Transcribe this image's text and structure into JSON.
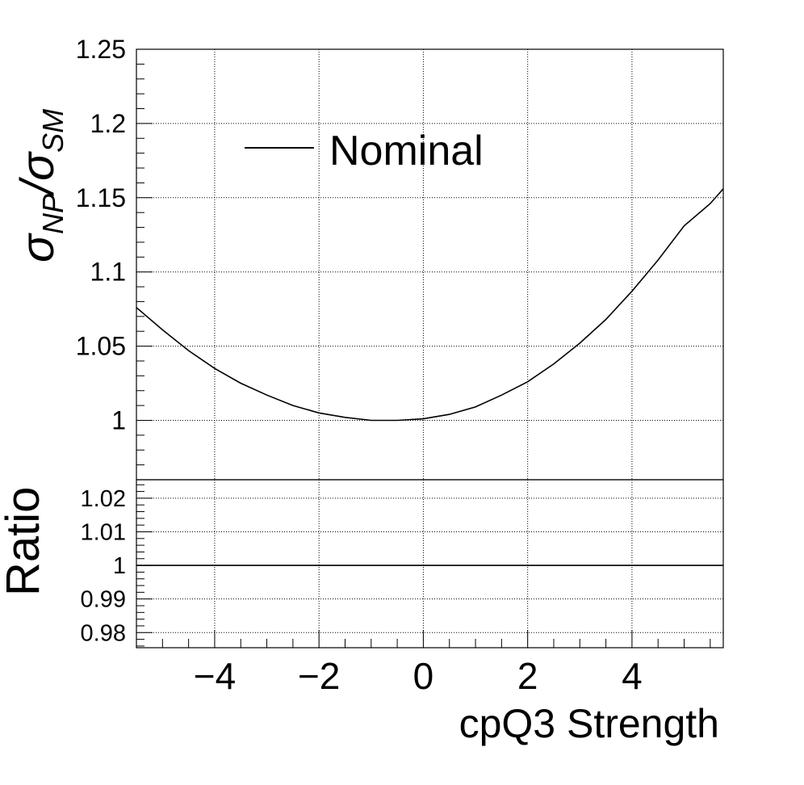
{
  "chart_data": [
    {
      "panel": "main",
      "type": "line",
      "ylabel_main": "σ",
      "ylabel_num_sub": "NP",
      "ylabel_den_sub": "SM",
      "xlim": [
        -5.5,
        5.75
      ],
      "ylim": [
        0.96,
        1.25
      ],
      "yticks": [
        1,
        1.05,
        1.1,
        1.15,
        1.2,
        1.25
      ],
      "ytick_labels": [
        "1",
        "1.05",
        "1.1",
        "1.15",
        "1.2",
        "1.25"
      ],
      "grid": true,
      "legend": {
        "placement": "top-left",
        "entries": [
          "Nominal"
        ]
      },
      "series": [
        {
          "name": "Nominal",
          "x": [
            -5.5,
            -5,
            -4.5,
            -4,
            -3.5,
            -3,
            -2.5,
            -2,
            -1.5,
            -1,
            -0.5,
            0,
            0.5,
            1,
            1.5,
            2,
            2.5,
            3,
            3.5,
            4,
            4.5,
            5,
            5.5,
            5.75
          ],
          "y": [
            1.076,
            1.061,
            1.047,
            1.035,
            1.025,
            1.017,
            1.01,
            1.005,
            1.002,
            1.0,
            1.0,
            1.001,
            1.004,
            1.009,
            1.017,
            1.026,
            1.038,
            1.052,
            1.068,
            1.087,
            1.108,
            1.131,
            1.146,
            1.156
          ]
        }
      ]
    },
    {
      "panel": "ratio",
      "type": "line",
      "ylabel": "Ratio",
      "xlabel": "cpQ3 Strength",
      "xlim": [
        -5.5,
        5.75
      ],
      "ylim": [
        0.9755,
        1.0255
      ],
      "xticks": [
        -4,
        -2,
        0,
        2,
        4
      ],
      "xtick_labels": [
        "−4",
        "−2",
        "0",
        "2",
        "4"
      ],
      "yticks": [
        0.98,
        0.99,
        1,
        1.01,
        1.02
      ],
      "ytick_labels": [
        "0.98",
        "0.99",
        "1",
        "1.01",
        "1.02"
      ],
      "grid": true,
      "series": [
        {
          "x": [
            -5.5,
            5.75
          ],
          "y": [
            1.0,
            1.0
          ]
        }
      ]
    }
  ]
}
